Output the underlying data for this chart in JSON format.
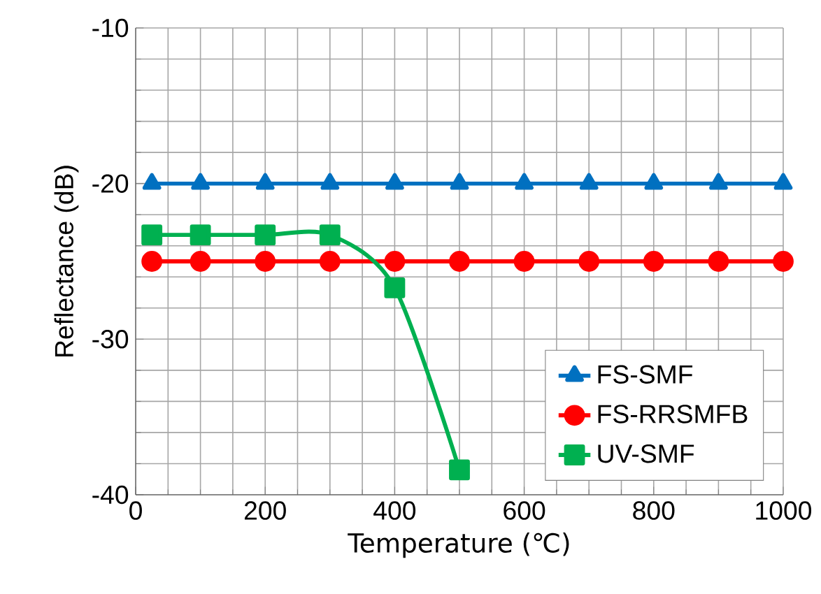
{
  "chart_data": {
    "type": "line",
    "xlabel": "Temperature (℃)",
    "ylabel": "Reflectance (dB)",
    "xlim": [
      0,
      1000
    ],
    "ylim": [
      -40,
      -10
    ],
    "xticks": [
      0,
      200,
      400,
      600,
      800,
      1000
    ],
    "yticks": [
      -40,
      -30,
      -20,
      -10
    ],
    "grid": true,
    "legend": "bottom right",
    "series": [
      {
        "name": "FS-SMF",
        "color": "#0070c0",
        "marker": "triangle",
        "x": [
          25,
          100,
          200,
          300,
          400,
          500,
          600,
          700,
          800,
          900,
          1000
        ],
        "values": [
          -20,
          -20,
          -20,
          -20,
          -20,
          -20,
          -20,
          -20,
          -20,
          -20,
          -20
        ]
      },
      {
        "name": "FS-RRSMFB",
        "color": "#ff0000",
        "marker": "circle",
        "x": [
          25,
          100,
          200,
          300,
          400,
          500,
          600,
          700,
          800,
          900,
          1000
        ],
        "values": [
          -25,
          -25,
          -25,
          -25,
          -25,
          -25,
          -25,
          -25,
          -25,
          -25,
          -25
        ]
      },
      {
        "name": "UV-SMF",
        "color": "#00b050",
        "marker": "square",
        "x": [
          25,
          100,
          200,
          300,
          400,
          500
        ],
        "values": [
          -23.3,
          -23.3,
          -23.3,
          -23.3,
          -26.7,
          -38.4
        ]
      }
    ]
  }
}
